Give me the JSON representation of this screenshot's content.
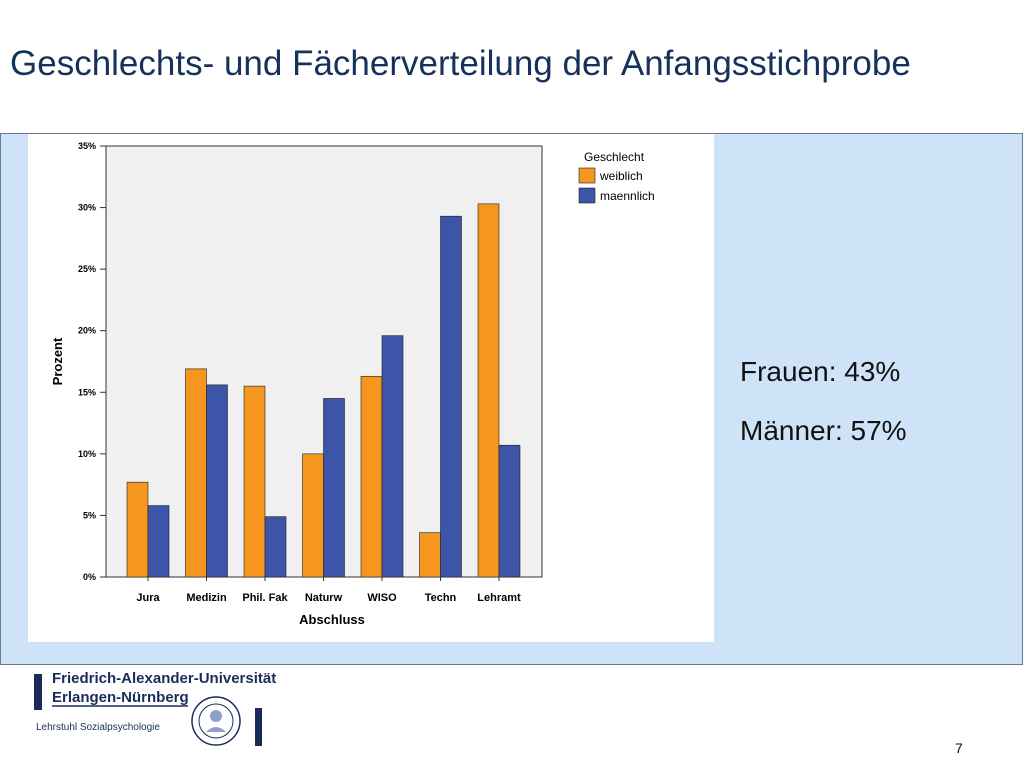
{
  "slide": {
    "title": "Geschlechts- und Fächerverteilung der Anfangsstichprobe",
    "stat_women": "Frauen: 43%",
    "stat_men": "Männer: 57%",
    "page_number": "7"
  },
  "footer": {
    "university_line1": "Friedrich-Alexander-Universität",
    "university_line2": "Erlangen-Nürnberg",
    "chair": "Lehrstuhl Sozialpsychologie"
  },
  "chart_data": {
    "type": "bar",
    "categories": [
      "Jura",
      "Medizin",
      "Phil. Fak",
      "Naturw",
      "WISO",
      "Techn",
      "Lehramt"
    ],
    "series": [
      {
        "name": "weiblich",
        "color": "#f5961e",
        "values": [
          7.7,
          16.9,
          15.5,
          10.0,
          16.3,
          3.6,
          30.3
        ]
      },
      {
        "name": "maennlich",
        "color": "#3d55a8",
        "values": [
          5.8,
          15.6,
          4.9,
          14.5,
          19.6,
          29.3,
          10.7
        ]
      }
    ],
    "xlabel": "Abschluss",
    "ylabel": "Prozent",
    "ylim": [
      0,
      35
    ],
    "yticks": [
      "0%",
      "5%",
      "10%",
      "15%",
      "20%",
      "25%",
      "30%",
      "35%"
    ],
    "legend": {
      "title": "Geschlecht",
      "placement": "top-right"
    },
    "grid": false,
    "plot_background": "#f0f0f0"
  }
}
